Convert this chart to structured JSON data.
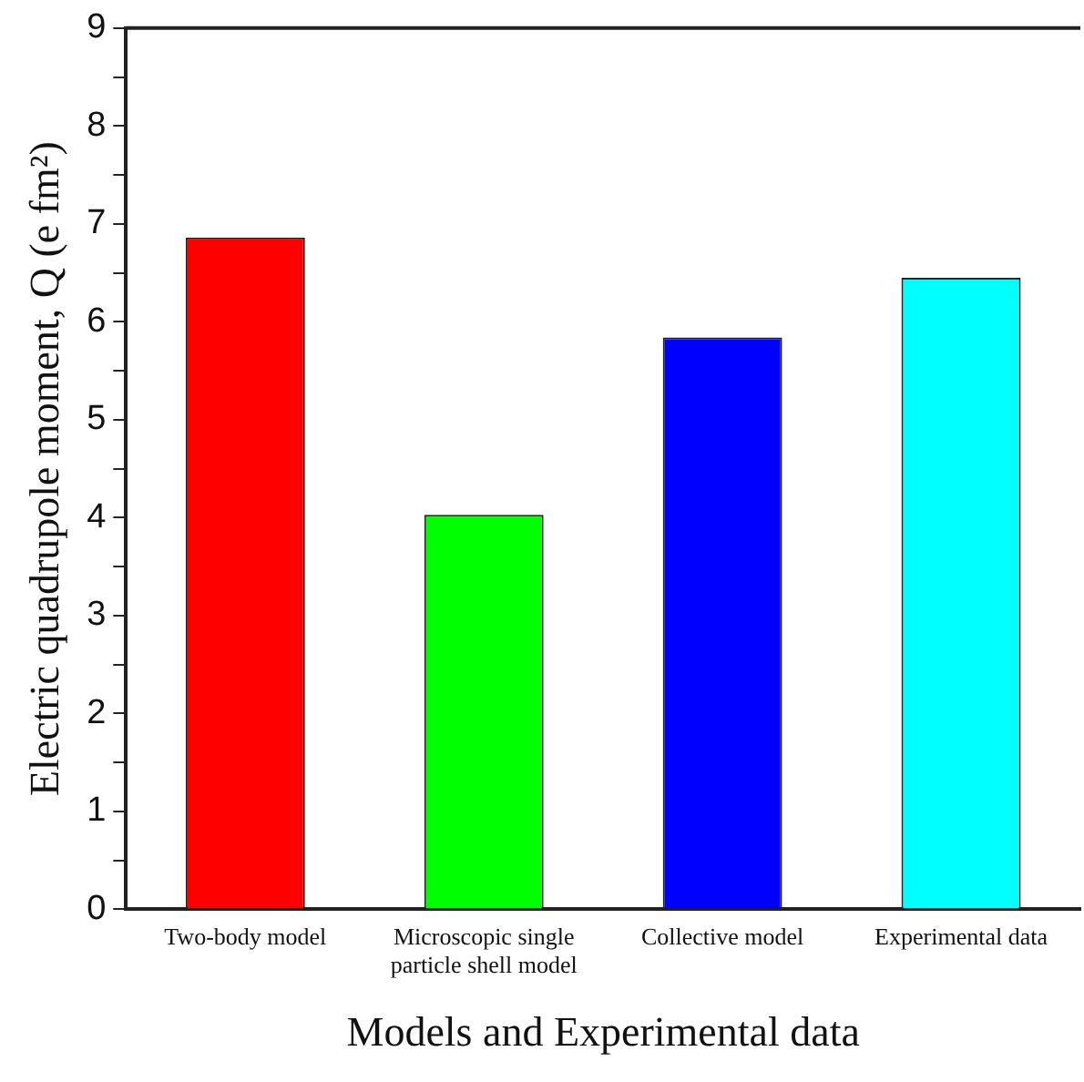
{
  "chart_data": {
    "type": "bar",
    "xlabel": "Models and Experimental data",
    "ylabel": "Electric quadrupole moment, Q (e fm²)",
    "categories": [
      "Two-body model",
      "Microscopic single particle shell model",
      "Collective model",
      "Experimental data"
    ],
    "values": [
      6.86,
      4.03,
      5.84,
      6.45
    ],
    "colors": [
      "#ff0000",
      "#00ff00",
      "#0000ff",
      "#00ffff"
    ],
    "ylim": [
      0,
      9
    ],
    "yticks": [
      0,
      {
        "value": 0.5,
        "label": null
      },
      1,
      {
        "value": 1.5,
        "label": null
      },
      2,
      {
        "value": 2.5,
        "label": null
      },
      3,
      {
        "value": 3.5,
        "label": null
      },
      4,
      {
        "value": 4.5,
        "label": null
      },
      5,
      {
        "value": 5.5,
        "label": null
      },
      6,
      {
        "value": 6.5,
        "label": null
      },
      7,
      {
        "value": 7.5,
        "label": null
      },
      8,
      {
        "value": 8.5,
        "label": null
      },
      9
    ],
    "grid": false,
    "legend": false
  }
}
